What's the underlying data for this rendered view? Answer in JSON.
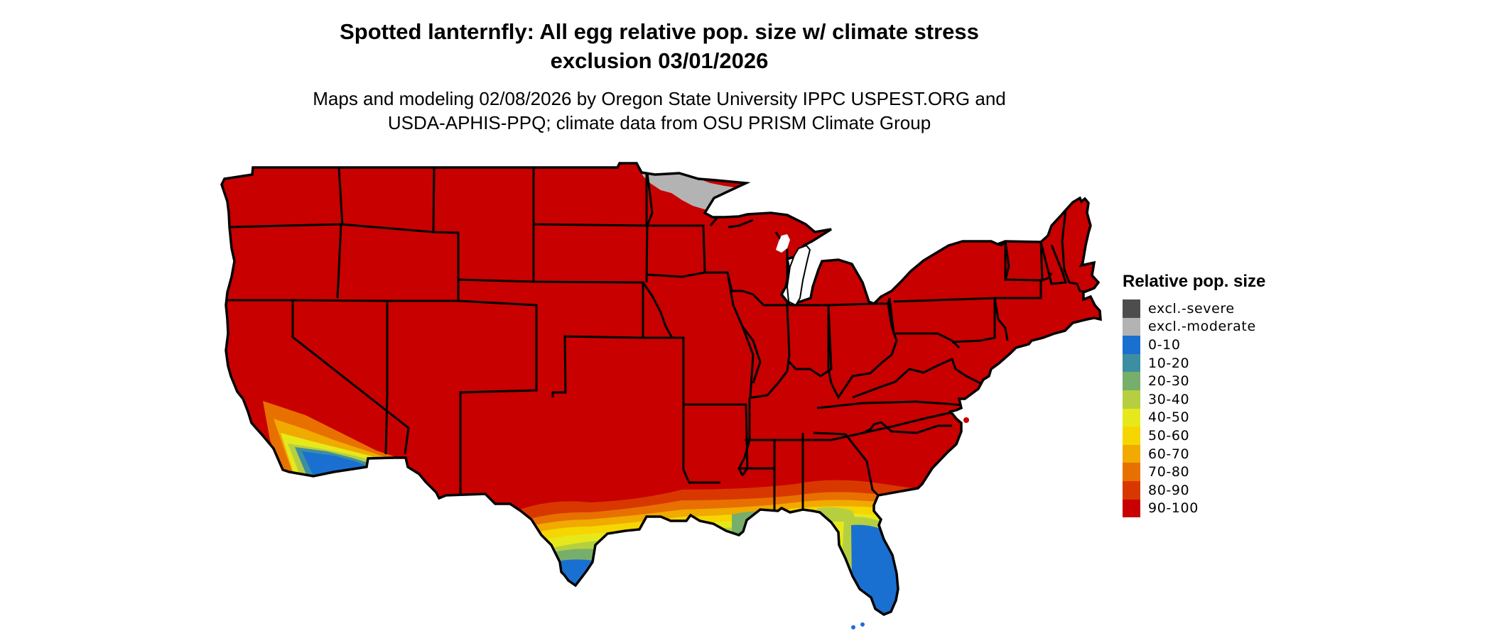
{
  "title": {
    "line1": "Spotted lanternfly: All egg relative pop. size w/ climate stress",
    "line2": "exclusion 03/01/2026"
  },
  "subtitle": {
    "line1": "Maps and modeling 02/08/2026 by Oregon State University IPPC USPEST.ORG and",
    "line2": "USDA-APHIS-PPQ; climate data from OSU PRISM Climate Group"
  },
  "legend": {
    "title": "Relative pop. size",
    "items": [
      {
        "label": "excl.-severe",
        "color": "#4d4d4d"
      },
      {
        "label": "excl.-moderate",
        "color": "#b3b3b3"
      },
      {
        "label": "0-10",
        "color": "#1a70d0"
      },
      {
        "label": "10-20",
        "color": "#3d8ea0"
      },
      {
        "label": "20-30",
        "color": "#78ae6c"
      },
      {
        "label": "30-40",
        "color": "#b5cf40"
      },
      {
        "label": "40-50",
        "color": "#e6e81c"
      },
      {
        "label": "50-60",
        "color": "#f6d600"
      },
      {
        "label": "60-70",
        "color": "#f0aa00"
      },
      {
        "label": "70-80",
        "color": "#e87000"
      },
      {
        "label": "80-90",
        "color": "#d83800"
      },
      {
        "label": "90-100",
        "color": "#c80000"
      }
    ]
  },
  "map": {
    "region": "Conterminous United States",
    "dominant_class": "90-100",
    "excluded_moderate_area": "northeastern Minnesota",
    "low_classes_areas": [
      "southern Florida",
      "southern Texas",
      "southern California",
      "southwestern Arizona",
      "Gulf Coast"
    ]
  }
}
